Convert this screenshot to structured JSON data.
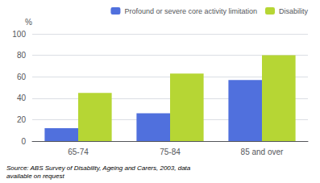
{
  "chart_data": {
    "type": "bar",
    "categories": [
      "65-74",
      "75-84",
      "85 and over"
    ],
    "series": [
      {
        "name": "Profound or severe core activity limitation",
        "values": [
          12,
          26,
          57
        ]
      },
      {
        "name": "Disability",
        "values": [
          45,
          63,
          80
        ]
      }
    ],
    "ylabel": "%",
    "ylim": [
      0,
      100
    ],
    "yticks": [
      0,
      20,
      40,
      60,
      80,
      100
    ],
    "grid": true,
    "legend": "upper right",
    "annotation": "Source: ABS Survey of Disability, Ageing and Carers, 2003, data\navailable on request"
  }
}
